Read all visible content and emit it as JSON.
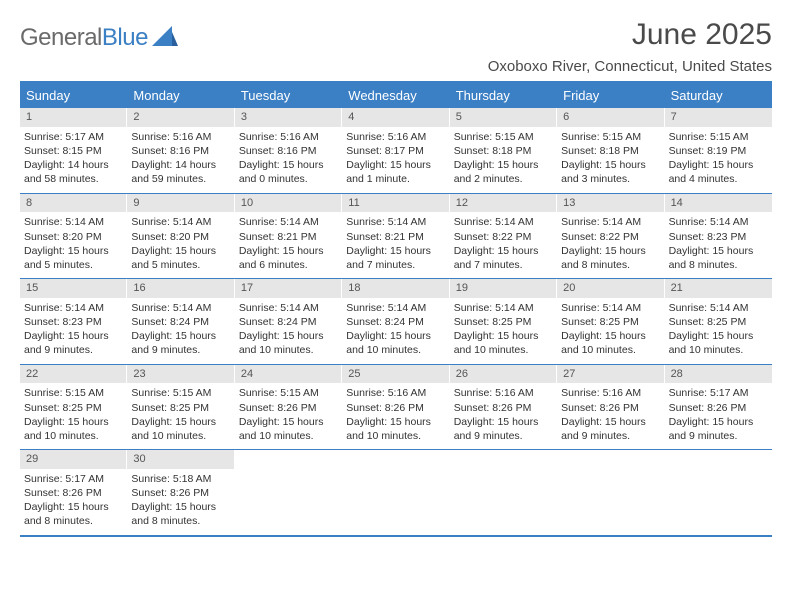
{
  "brand": {
    "part1": "General",
    "part2": "Blue"
  },
  "title": "June 2025",
  "location": "Oxoboxo River, Connecticut, United States",
  "colors": {
    "accent": "#3b7fc4",
    "date_bg": "#e6e6e6",
    "text": "#333333",
    "title_text": "#4a4a4a",
    "logo_gray": "#6a6a6a"
  },
  "calendar": {
    "dow": [
      "Sunday",
      "Monday",
      "Tuesday",
      "Wednesday",
      "Thursday",
      "Friday",
      "Saturday"
    ],
    "weeks": [
      [
        {
          "n": "1",
          "sr": "Sunrise: 5:17 AM",
          "ss": "Sunset: 8:15 PM",
          "d1": "Daylight: 14 hours",
          "d2": "and 58 minutes."
        },
        {
          "n": "2",
          "sr": "Sunrise: 5:16 AM",
          "ss": "Sunset: 8:16 PM",
          "d1": "Daylight: 14 hours",
          "d2": "and 59 minutes."
        },
        {
          "n": "3",
          "sr": "Sunrise: 5:16 AM",
          "ss": "Sunset: 8:16 PM",
          "d1": "Daylight: 15 hours",
          "d2": "and 0 minutes."
        },
        {
          "n": "4",
          "sr": "Sunrise: 5:16 AM",
          "ss": "Sunset: 8:17 PM",
          "d1": "Daylight: 15 hours",
          "d2": "and 1 minute."
        },
        {
          "n": "5",
          "sr": "Sunrise: 5:15 AM",
          "ss": "Sunset: 8:18 PM",
          "d1": "Daylight: 15 hours",
          "d2": "and 2 minutes."
        },
        {
          "n": "6",
          "sr": "Sunrise: 5:15 AM",
          "ss": "Sunset: 8:18 PM",
          "d1": "Daylight: 15 hours",
          "d2": "and 3 minutes."
        },
        {
          "n": "7",
          "sr": "Sunrise: 5:15 AM",
          "ss": "Sunset: 8:19 PM",
          "d1": "Daylight: 15 hours",
          "d2": "and 4 minutes."
        }
      ],
      [
        {
          "n": "8",
          "sr": "Sunrise: 5:14 AM",
          "ss": "Sunset: 8:20 PM",
          "d1": "Daylight: 15 hours",
          "d2": "and 5 minutes."
        },
        {
          "n": "9",
          "sr": "Sunrise: 5:14 AM",
          "ss": "Sunset: 8:20 PM",
          "d1": "Daylight: 15 hours",
          "d2": "and 5 minutes."
        },
        {
          "n": "10",
          "sr": "Sunrise: 5:14 AM",
          "ss": "Sunset: 8:21 PM",
          "d1": "Daylight: 15 hours",
          "d2": "and 6 minutes."
        },
        {
          "n": "11",
          "sr": "Sunrise: 5:14 AM",
          "ss": "Sunset: 8:21 PM",
          "d1": "Daylight: 15 hours",
          "d2": "and 7 minutes."
        },
        {
          "n": "12",
          "sr": "Sunrise: 5:14 AM",
          "ss": "Sunset: 8:22 PM",
          "d1": "Daylight: 15 hours",
          "d2": "and 7 minutes."
        },
        {
          "n": "13",
          "sr": "Sunrise: 5:14 AM",
          "ss": "Sunset: 8:22 PM",
          "d1": "Daylight: 15 hours",
          "d2": "and 8 minutes."
        },
        {
          "n": "14",
          "sr": "Sunrise: 5:14 AM",
          "ss": "Sunset: 8:23 PM",
          "d1": "Daylight: 15 hours",
          "d2": "and 8 minutes."
        }
      ],
      [
        {
          "n": "15",
          "sr": "Sunrise: 5:14 AM",
          "ss": "Sunset: 8:23 PM",
          "d1": "Daylight: 15 hours",
          "d2": "and 9 minutes."
        },
        {
          "n": "16",
          "sr": "Sunrise: 5:14 AM",
          "ss": "Sunset: 8:24 PM",
          "d1": "Daylight: 15 hours",
          "d2": "and 9 minutes."
        },
        {
          "n": "17",
          "sr": "Sunrise: 5:14 AM",
          "ss": "Sunset: 8:24 PM",
          "d1": "Daylight: 15 hours",
          "d2": "and 10 minutes."
        },
        {
          "n": "18",
          "sr": "Sunrise: 5:14 AM",
          "ss": "Sunset: 8:24 PM",
          "d1": "Daylight: 15 hours",
          "d2": "and 10 minutes."
        },
        {
          "n": "19",
          "sr": "Sunrise: 5:14 AM",
          "ss": "Sunset: 8:25 PM",
          "d1": "Daylight: 15 hours",
          "d2": "and 10 minutes."
        },
        {
          "n": "20",
          "sr": "Sunrise: 5:14 AM",
          "ss": "Sunset: 8:25 PM",
          "d1": "Daylight: 15 hours",
          "d2": "and 10 minutes."
        },
        {
          "n": "21",
          "sr": "Sunrise: 5:14 AM",
          "ss": "Sunset: 8:25 PM",
          "d1": "Daylight: 15 hours",
          "d2": "and 10 minutes."
        }
      ],
      [
        {
          "n": "22",
          "sr": "Sunrise: 5:15 AM",
          "ss": "Sunset: 8:25 PM",
          "d1": "Daylight: 15 hours",
          "d2": "and 10 minutes."
        },
        {
          "n": "23",
          "sr": "Sunrise: 5:15 AM",
          "ss": "Sunset: 8:25 PM",
          "d1": "Daylight: 15 hours",
          "d2": "and 10 minutes."
        },
        {
          "n": "24",
          "sr": "Sunrise: 5:15 AM",
          "ss": "Sunset: 8:26 PM",
          "d1": "Daylight: 15 hours",
          "d2": "and 10 minutes."
        },
        {
          "n": "25",
          "sr": "Sunrise: 5:16 AM",
          "ss": "Sunset: 8:26 PM",
          "d1": "Daylight: 15 hours",
          "d2": "and 10 minutes."
        },
        {
          "n": "26",
          "sr": "Sunrise: 5:16 AM",
          "ss": "Sunset: 8:26 PM",
          "d1": "Daylight: 15 hours",
          "d2": "and 9 minutes."
        },
        {
          "n": "27",
          "sr": "Sunrise: 5:16 AM",
          "ss": "Sunset: 8:26 PM",
          "d1": "Daylight: 15 hours",
          "d2": "and 9 minutes."
        },
        {
          "n": "28",
          "sr": "Sunrise: 5:17 AM",
          "ss": "Sunset: 8:26 PM",
          "d1": "Daylight: 15 hours",
          "d2": "and 9 minutes."
        }
      ],
      [
        {
          "n": "29",
          "sr": "Sunrise: 5:17 AM",
          "ss": "Sunset: 8:26 PM",
          "d1": "Daylight: 15 hours",
          "d2": "and 8 minutes."
        },
        {
          "n": "30",
          "sr": "Sunrise: 5:18 AM",
          "ss": "Sunset: 8:26 PM",
          "d1": "Daylight: 15 hours",
          "d2": "and 8 minutes."
        },
        null,
        null,
        null,
        null,
        null
      ]
    ]
  }
}
